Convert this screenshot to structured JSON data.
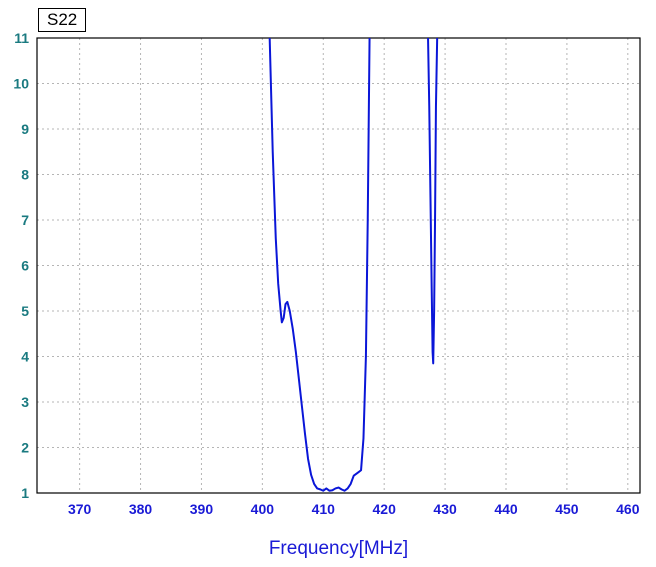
{
  "chart_data": {
    "type": "line",
    "series_tag": "S22",
    "xlabel": "Frequency[MHz]",
    "ylabel": "",
    "xlim": [
      363,
      462
    ],
    "ylim": [
      1,
      11
    ],
    "xticks": [
      370,
      380,
      390,
      400,
      410,
      420,
      430,
      440,
      450,
      460
    ],
    "yticks": [
      1,
      2,
      3,
      4,
      5,
      6,
      7,
      8,
      9,
      10,
      11
    ],
    "grid": true,
    "colors": {
      "line": "#0a16d8",
      "ytick": "#1a7a80",
      "xtick": "#1a1ad6",
      "xlabel": "#1a1ad6"
    },
    "series": [
      {
        "segments": [
          [
            [
              401.2,
              11.0
            ],
            [
              401.7,
              8.5
            ],
            [
              402.2,
              6.6
            ],
            [
              402.6,
              5.6
            ],
            [
              403.0,
              5.0
            ],
            [
              403.2,
              4.75
            ],
            [
              403.5,
              4.85
            ],
            [
              403.8,
              5.15
            ],
            [
              404.1,
              5.2
            ],
            [
              404.5,
              5.0
            ],
            [
              405.0,
              4.6
            ],
            [
              405.5,
              4.1
            ],
            [
              406.0,
              3.5
            ],
            [
              406.5,
              2.9
            ],
            [
              407.0,
              2.3
            ],
            [
              407.5,
              1.75
            ],
            [
              408.0,
              1.4
            ],
            [
              408.5,
              1.2
            ],
            [
              409.0,
              1.1
            ],
            [
              409.5,
              1.08
            ],
            [
              410.0,
              1.05
            ],
            [
              410.5,
              1.1
            ],
            [
              411.0,
              1.05
            ],
            [
              411.5,
              1.06
            ],
            [
              412.0,
              1.1
            ],
            [
              412.5,
              1.12
            ],
            [
              413.0,
              1.08
            ],
            [
              413.5,
              1.05
            ],
            [
              414.0,
              1.1
            ],
            [
              414.5,
              1.2
            ],
            [
              415.0,
              1.38
            ],
            [
              415.7,
              1.45
            ],
            [
              416.2,
              1.5
            ],
            [
              416.6,
              2.2
            ],
            [
              417.0,
              4.0
            ],
            [
              417.3,
              7.0
            ],
            [
              417.6,
              11.0
            ]
          ],
          [
            [
              427.2,
              11.0
            ],
            [
              427.4,
              9.5
            ],
            [
              427.6,
              7.5
            ],
            [
              427.8,
              5.5
            ],
            [
              427.95,
              4.1
            ],
            [
              428.05,
              3.85
            ],
            [
              428.2,
              5.0
            ],
            [
              428.35,
              7.0
            ],
            [
              428.5,
              9.5
            ],
            [
              428.7,
              11.0
            ]
          ]
        ]
      }
    ]
  }
}
